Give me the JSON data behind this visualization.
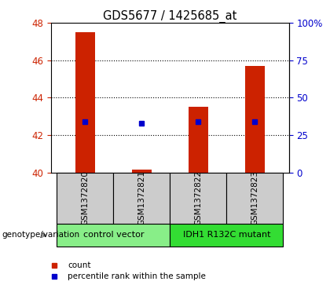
{
  "title": "GDS5677 / 1425685_at",
  "samples": [
    "GSM1372820",
    "GSM1372821",
    "GSM1372822",
    "GSM1372823"
  ],
  "bar_base": 40,
  "bar_tops": [
    47.5,
    40.15,
    43.5,
    45.7
  ],
  "blue_values": [
    42.72,
    42.62,
    42.72,
    42.72
  ],
  "ylim_left": [
    40,
    48
  ],
  "ylim_right": [
    0,
    100
  ],
  "yticks_left": [
    40,
    42,
    44,
    46,
    48
  ],
  "yticks_right": [
    0,
    25,
    50,
    75,
    100
  ],
  "ytick_labels_right": [
    "0",
    "25",
    "50",
    "75",
    "100%"
  ],
  "bar_color": "#cc2200",
  "blue_color": "#0000cc",
  "left_tick_color": "#cc2200",
  "right_tick_color": "#0000cc",
  "groups": [
    {
      "label": "control vector",
      "samples": [
        0,
        1
      ],
      "color": "#88ee88"
    },
    {
      "label": "IDH1 R132C mutant",
      "samples": [
        2,
        3
      ],
      "color": "#33dd33"
    }
  ],
  "genotype_label": "genotype/variation",
  "legend_items": [
    {
      "color": "#cc2200",
      "label": "count"
    },
    {
      "color": "#0000cc",
      "label": "percentile rank within the sample"
    }
  ],
  "sample_box_color": "#cccccc",
  "dotted_yticks": [
    42,
    44,
    46
  ],
  "bar_width": 0.35,
  "figsize": [
    4.2,
    3.63
  ],
  "dpi": 100
}
